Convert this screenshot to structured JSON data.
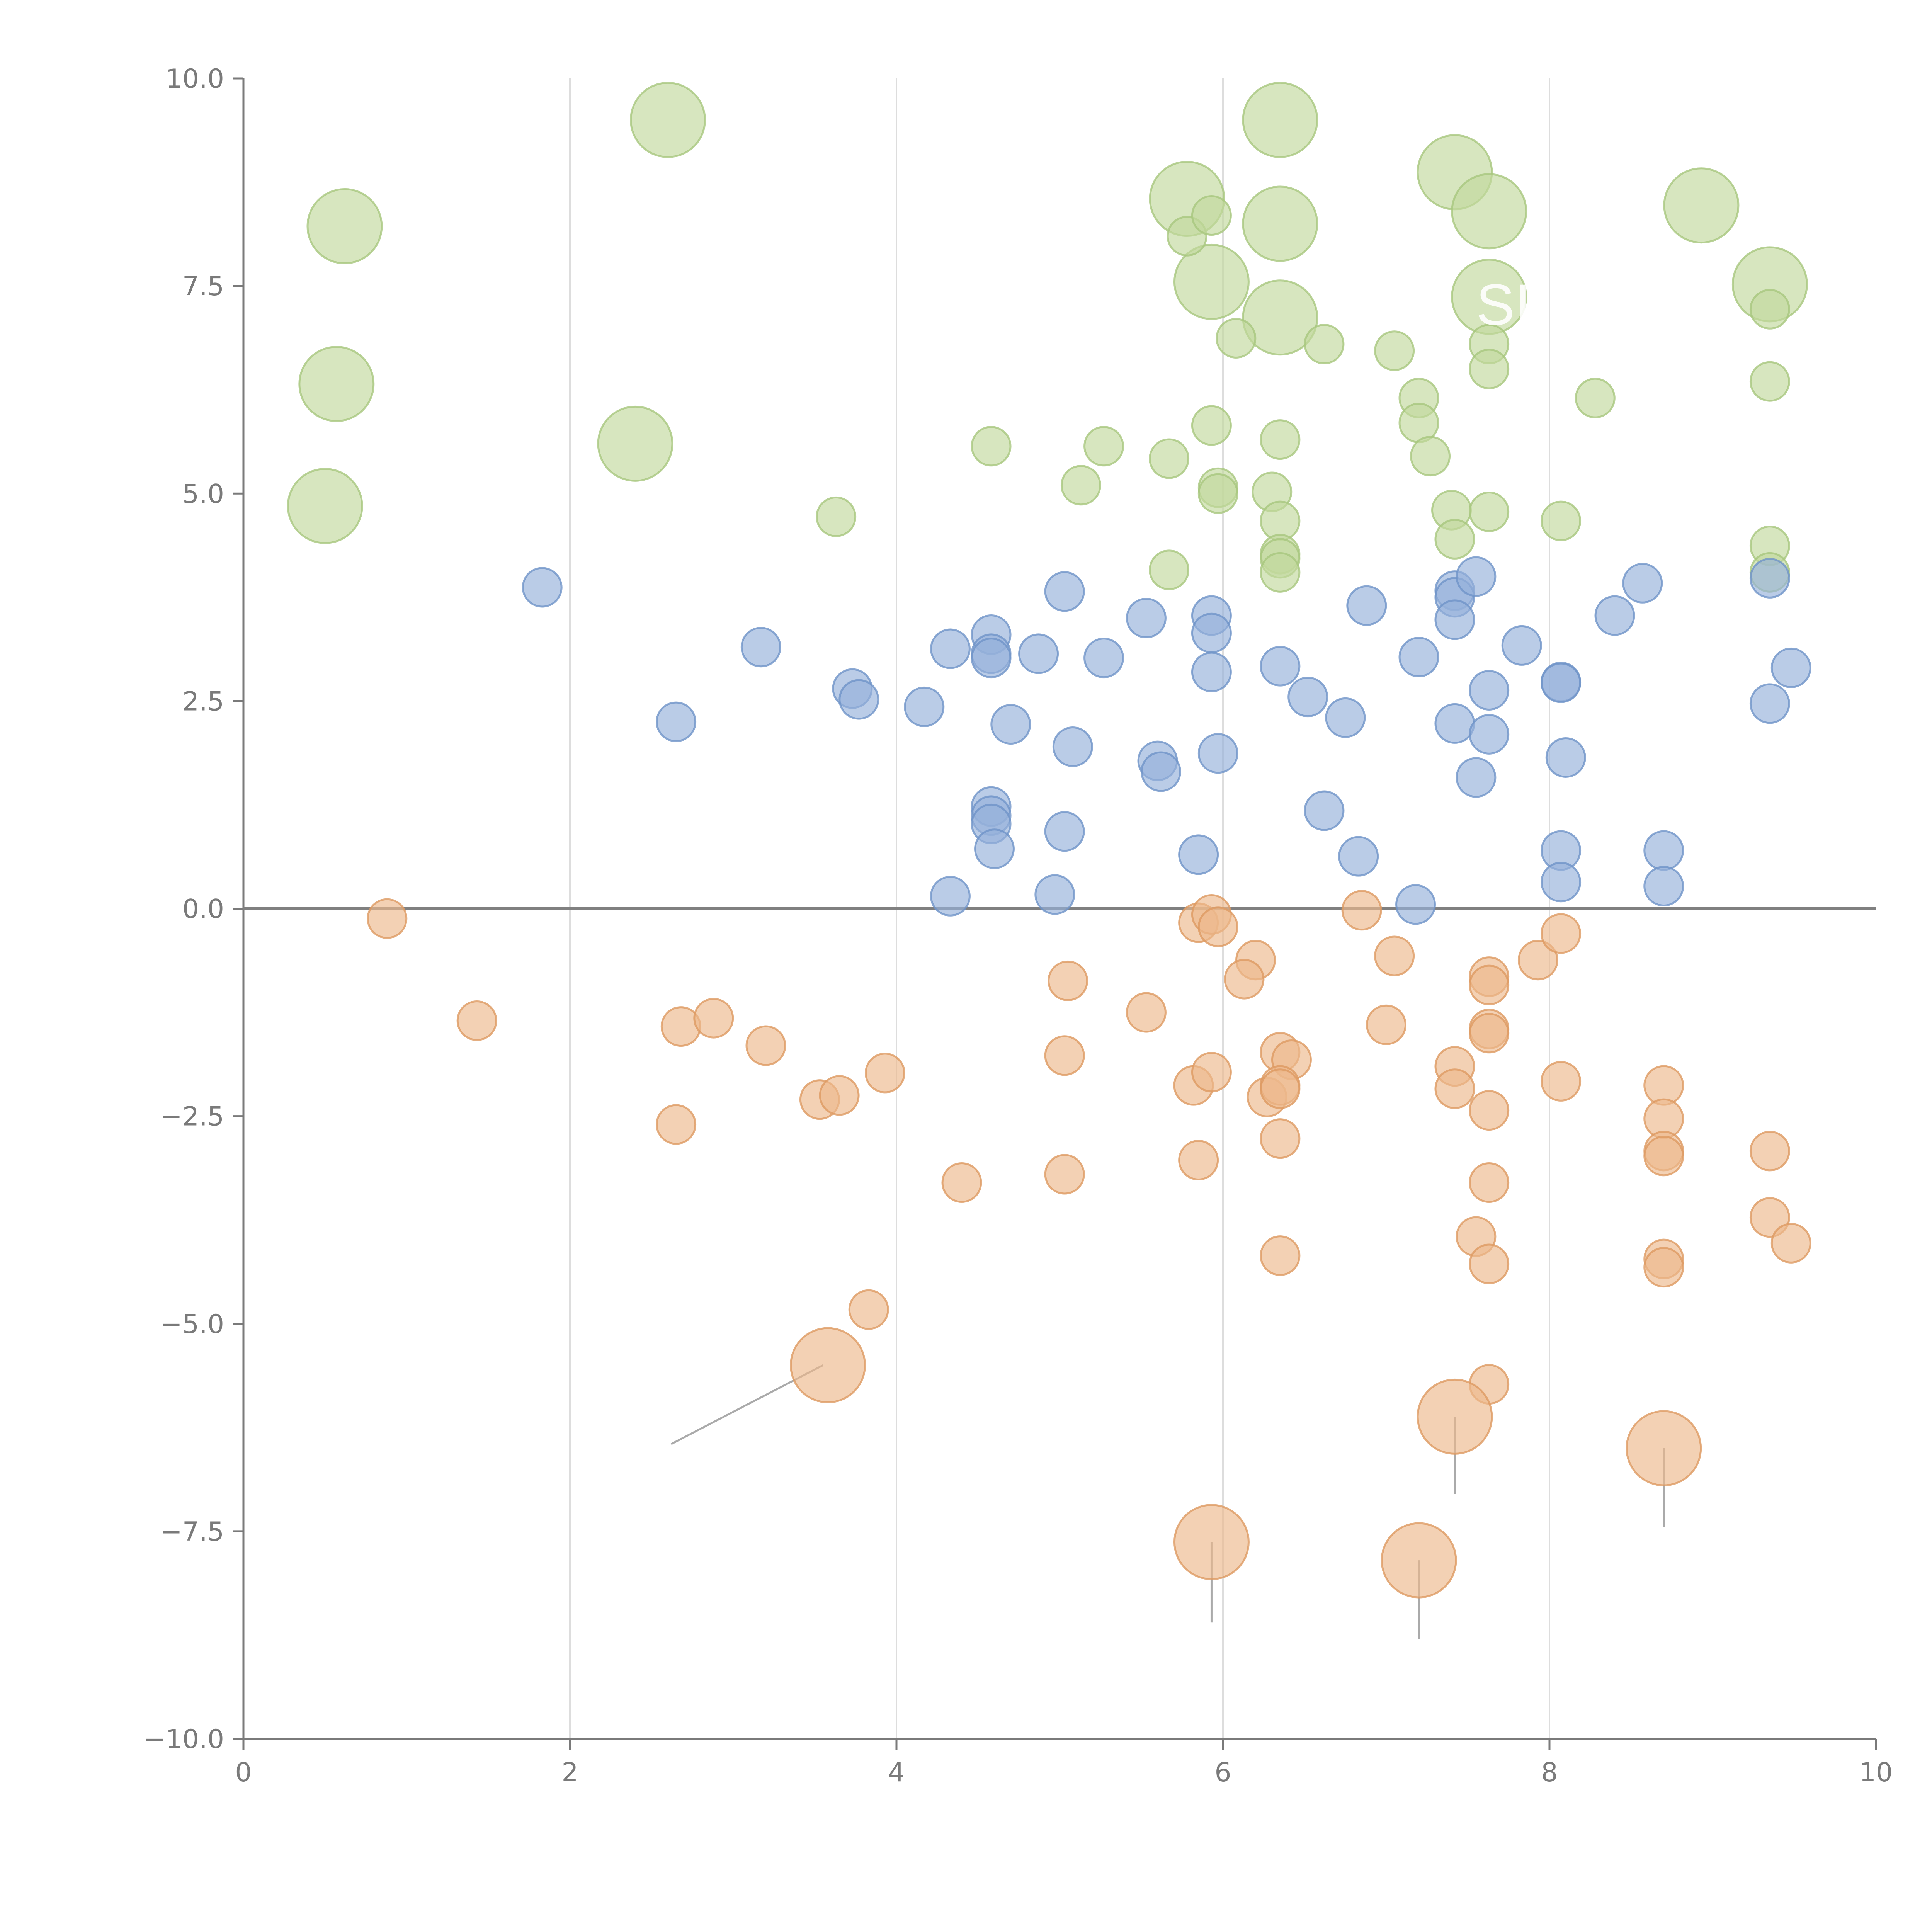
{
  "colors": {
    "green_fill": "#c2d99c",
    "green_stroke": "#a8c77e",
    "blue_fill": "#95b0da",
    "blue_stroke": "#6f93c8",
    "orange_fill": "#edb88c",
    "orange_stroke": "#dd9a62",
    "axis": "#7a7a7a",
    "grid": "#dddddd",
    "zero_line": "#808080",
    "leader": "#aaaaaa"
  },
  "chart_data": {
    "type": "scatter",
    "title": "",
    "xlabel": "",
    "ylabel": "",
    "xlim": [
      0,
      10
    ],
    "ylim": [
      -10,
      10
    ],
    "grid": "vertical",
    "x_ticks": [
      "0",
      "2",
      "4",
      "6",
      "8",
      "10"
    ],
    "y_ticks": [
      "10.0",
      "7.5",
      "5.0",
      "2.5",
      "0.0",
      "−2.5",
      "−5.0",
      "−7.5",
      "−10.0"
    ],
    "x_tick_values": [
      0,
      2,
      4,
      6,
      8,
      10
    ],
    "y_tick_values": [
      10,
      7.5,
      5,
      2.5,
      0,
      -2.5,
      -5,
      -7.5,
      -10
    ],
    "annotation": "SI",
    "series": [
      {
        "name": "green",
        "color": "#c2d99c",
        "points": [
          [
            0.62,
            8.22,
            "L"
          ],
          [
            2.6,
            9.5,
            "L"
          ],
          [
            0.57,
            6.32,
            "L"
          ],
          [
            2.4,
            5.6,
            "L"
          ],
          [
            0.5,
            4.85,
            "L"
          ],
          [
            5.78,
            8.55,
            "L"
          ],
          [
            6.35,
            9.5,
            "L"
          ],
          [
            6.35,
            8.25,
            "L"
          ],
          [
            5.93,
            7.55,
            "L"
          ],
          [
            6.35,
            7.12,
            "L"
          ],
          [
            7.42,
            8.87,
            "L"
          ],
          [
            7.63,
            8.4,
            "L"
          ],
          [
            7.63,
            7.37,
            "L"
          ],
          [
            8.93,
            8.47,
            "L"
          ],
          [
            9.35,
            7.52,
            "L"
          ],
          [
            5.78,
            8.1,
            "S"
          ],
          [
            5.93,
            8.35,
            "S"
          ],
          [
            6.08,
            6.87,
            "S"
          ],
          [
            6.62,
            6.8,
            "S"
          ],
          [
            7.05,
            6.72,
            "S"
          ],
          [
            7.63,
            6.8,
            "S"
          ],
          [
            7.63,
            6.5,
            "S"
          ],
          [
            7.2,
            6.15,
            "S"
          ],
          [
            8.28,
            6.15,
            "S"
          ],
          [
            9.35,
            7.22,
            "S"
          ],
          [
            9.35,
            6.35,
            "S"
          ],
          [
            7.2,
            5.85,
            "S"
          ],
          [
            7.27,
            5.45,
            "S"
          ],
          [
            5.93,
            5.82,
            "S"
          ],
          [
            6.35,
            5.65,
            "S"
          ],
          [
            4.58,
            5.57,
            "S"
          ],
          [
            5.27,
            5.57,
            "S"
          ],
          [
            5.67,
            5.42,
            "S"
          ],
          [
            5.13,
            5.1,
            "S"
          ],
          [
            5.97,
            5.07,
            "S"
          ],
          [
            5.97,
            5.0,
            "S"
          ],
          [
            6.3,
            5.02,
            "S"
          ],
          [
            6.35,
            4.67,
            "S"
          ],
          [
            6.35,
            4.27,
            "S"
          ],
          [
            6.35,
            4.22,
            "S"
          ],
          [
            6.35,
            4.05,
            "S"
          ],
          [
            3.63,
            4.72,
            "S"
          ],
          [
            5.67,
            4.08,
            "S"
          ],
          [
            7.4,
            4.8,
            "S"
          ],
          [
            7.63,
            4.78,
            "S"
          ],
          [
            7.42,
            4.45,
            "S"
          ],
          [
            8.07,
            4.67,
            "S"
          ],
          [
            9.35,
            4.37,
            "S"
          ],
          [
            9.35,
            4.05,
            "S"
          ]
        ]
      },
      {
        "name": "blue",
        "color": "#95b0da",
        "points": [
          [
            1.83,
            3.87,
            "S"
          ],
          [
            3.17,
            3.15,
            "S"
          ],
          [
            2.65,
            2.25,
            "S"
          ],
          [
            3.73,
            2.65,
            "S"
          ],
          [
            3.77,
            2.52,
            "S"
          ],
          [
            4.17,
            2.43,
            "S"
          ],
          [
            4.33,
            3.13,
            "S"
          ],
          [
            4.58,
            3.3,
            "S"
          ],
          [
            4.58,
            3.07,
            "S"
          ],
          [
            4.58,
            3.02,
            "S"
          ],
          [
            4.7,
            2.22,
            "S"
          ],
          [
            4.87,
            3.07,
            "S"
          ],
          [
            5.03,
            3.82,
            "S"
          ],
          [
            5.08,
            1.95,
            "S"
          ],
          [
            5.27,
            3.02,
            "S"
          ],
          [
            5.53,
            3.5,
            "S"
          ],
          [
            5.6,
            1.78,
            "S"
          ],
          [
            5.62,
            1.65,
            "S"
          ],
          [
            5.93,
            3.53,
            "S"
          ],
          [
            5.93,
            3.32,
            "S"
          ],
          [
            5.93,
            2.85,
            "S"
          ],
          [
            5.97,
            1.87,
            "S"
          ],
          [
            6.35,
            2.92,
            "S"
          ],
          [
            6.52,
            2.55,
            "S"
          ],
          [
            6.75,
            2.3,
            "S"
          ],
          [
            6.88,
            3.65,
            "S"
          ],
          [
            6.62,
            1.18,
            "S"
          ],
          [
            6.83,
            0.63,
            "S"
          ],
          [
            5.85,
            0.65,
            "S"
          ],
          [
            4.58,
            1.23,
            "S"
          ],
          [
            4.58,
            1.12,
            "S"
          ],
          [
            4.58,
            1.02,
            "S"
          ],
          [
            4.6,
            0.72,
            "S"
          ],
          [
            5.03,
            0.93,
            "S"
          ],
          [
            4.33,
            0.15,
            "S"
          ],
          [
            4.97,
            0.17,
            "S"
          ],
          [
            7.2,
            3.03,
            "S"
          ],
          [
            7.18,
            0.05,
            "S"
          ],
          [
            7.42,
            3.83,
            "S"
          ],
          [
            7.42,
            3.75,
            "S"
          ],
          [
            7.42,
            3.48,
            "S"
          ],
          [
            7.55,
            4.0,
            "S"
          ],
          [
            7.42,
            2.23,
            "S"
          ],
          [
            7.63,
            2.63,
            "S"
          ],
          [
            7.63,
            2.1,
            "S"
          ],
          [
            7.55,
            1.58,
            "S"
          ],
          [
            7.83,
            3.17,
            "S"
          ],
          [
            8.07,
            2.73,
            "S"
          ],
          [
            8.07,
            2.72,
            "S"
          ],
          [
            8.1,
            1.82,
            "S"
          ],
          [
            8.07,
            0.7,
            "S"
          ],
          [
            8.07,
            0.32,
            "S"
          ],
          [
            8.4,
            3.53,
            "S"
          ],
          [
            8.57,
            3.92,
            "S"
          ],
          [
            8.7,
            0.7,
            "S"
          ],
          [
            8.7,
            0.27,
            "S"
          ],
          [
            9.35,
            3.98,
            "S"
          ],
          [
            9.35,
            2.47,
            "S"
          ],
          [
            9.48,
            2.9,
            "S"
          ]
        ]
      },
      {
        "name": "orange",
        "color": "#edb88c",
        "points": [
          [
            0.88,
            -0.12,
            "S"
          ],
          [
            1.43,
            -1.35,
            "S"
          ],
          [
            2.68,
            -1.42,
            "S"
          ],
          [
            2.88,
            -1.32,
            "S"
          ],
          [
            3.2,
            -1.65,
            "S"
          ],
          [
            2.65,
            -2.6,
            "S"
          ],
          [
            3.53,
            -2.3,
            "S"
          ],
          [
            3.65,
            -2.25,
            "S"
          ],
          [
            3.93,
            -1.98,
            "S"
          ],
          [
            3.83,
            -4.83,
            "S"
          ],
          [
            4.4,
            -3.3,
            "S"
          ],
          [
            5.05,
            -0.87,
            "S"
          ],
          [
            5.03,
            -1.77,
            "S"
          ],
          [
            5.03,
            -3.2,
            "S"
          ],
          [
            5.53,
            -1.25,
            "S"
          ],
          [
            5.82,
            -2.13,
            "S"
          ],
          [
            5.93,
            -1.97,
            "S"
          ],
          [
            5.85,
            -3.03,
            "S"
          ],
          [
            5.85,
            -0.17,
            "S"
          ],
          [
            5.93,
            -0.07,
            "S"
          ],
          [
            5.97,
            -0.22,
            "S"
          ],
          [
            6.2,
            -0.62,
            "S"
          ],
          [
            6.13,
            -0.85,
            "S"
          ],
          [
            6.27,
            -2.27,
            "S"
          ],
          [
            6.35,
            -1.73,
            "S"
          ],
          [
            6.42,
            -1.82,
            "S"
          ],
          [
            6.35,
            -2.13,
            "S"
          ],
          [
            6.35,
            -2.17,
            "S"
          ],
          [
            6.35,
            -2.77,
            "S"
          ],
          [
            6.35,
            -4.18,
            "S"
          ],
          [
            6.85,
            -0.02,
            "S"
          ],
          [
            7.05,
            -0.57,
            "S"
          ],
          [
            7.0,
            -1.4,
            "S"
          ],
          [
            7.42,
            -1.9,
            "S"
          ],
          [
            7.42,
            -2.17,
            "S"
          ],
          [
            7.63,
            -0.82,
            "S"
          ],
          [
            7.63,
            -0.92,
            "S"
          ],
          [
            7.63,
            -1.45,
            "S"
          ],
          [
            7.63,
            -1.5,
            "S"
          ],
          [
            7.63,
            -2.43,
            "S"
          ],
          [
            7.63,
            -3.3,
            "S"
          ],
          [
            7.55,
            -3.95,
            "S"
          ],
          [
            7.63,
            -4.28,
            "S"
          ],
          [
            7.63,
            -5.73,
            "S"
          ],
          [
            7.93,
            -0.62,
            "S"
          ],
          [
            8.07,
            -0.3,
            "S"
          ],
          [
            8.07,
            -2.08,
            "S"
          ],
          [
            8.7,
            -2.13,
            "S"
          ],
          [
            8.7,
            -2.53,
            "S"
          ],
          [
            8.7,
            -2.92,
            "S"
          ],
          [
            8.7,
            -2.98,
            "S"
          ],
          [
            8.7,
            -4.22,
            "S"
          ],
          [
            8.7,
            -4.32,
            "S"
          ],
          [
            9.35,
            -2.92,
            "S"
          ],
          [
            9.35,
            -3.72,
            "S"
          ],
          [
            9.48,
            -4.03,
            "S"
          ],
          [
            3.58,
            -5.5,
            "L"
          ],
          [
            7.42,
            -6.12,
            "L"
          ],
          [
            8.7,
            -6.5,
            "L"
          ],
          [
            5.93,
            -7.63,
            "L"
          ],
          [
            7.2,
            -7.85,
            "L"
          ]
        ]
      }
    ],
    "leader_lines": [
      [
        [
          3.55,
          -5.5
        ],
        [
          2.62,
          -6.45
        ]
      ],
      [
        [
          7.42,
          -6.12
        ],
        [
          7.42,
          -7.05
        ]
      ],
      [
        [
          8.7,
          -6.5
        ],
        [
          8.7,
          -7.45
        ]
      ],
      [
        [
          5.93,
          -7.63
        ],
        [
          5.93,
          -8.6
        ]
      ],
      [
        [
          7.2,
          -7.85
        ],
        [
          7.2,
          -8.8
        ]
      ]
    ]
  }
}
